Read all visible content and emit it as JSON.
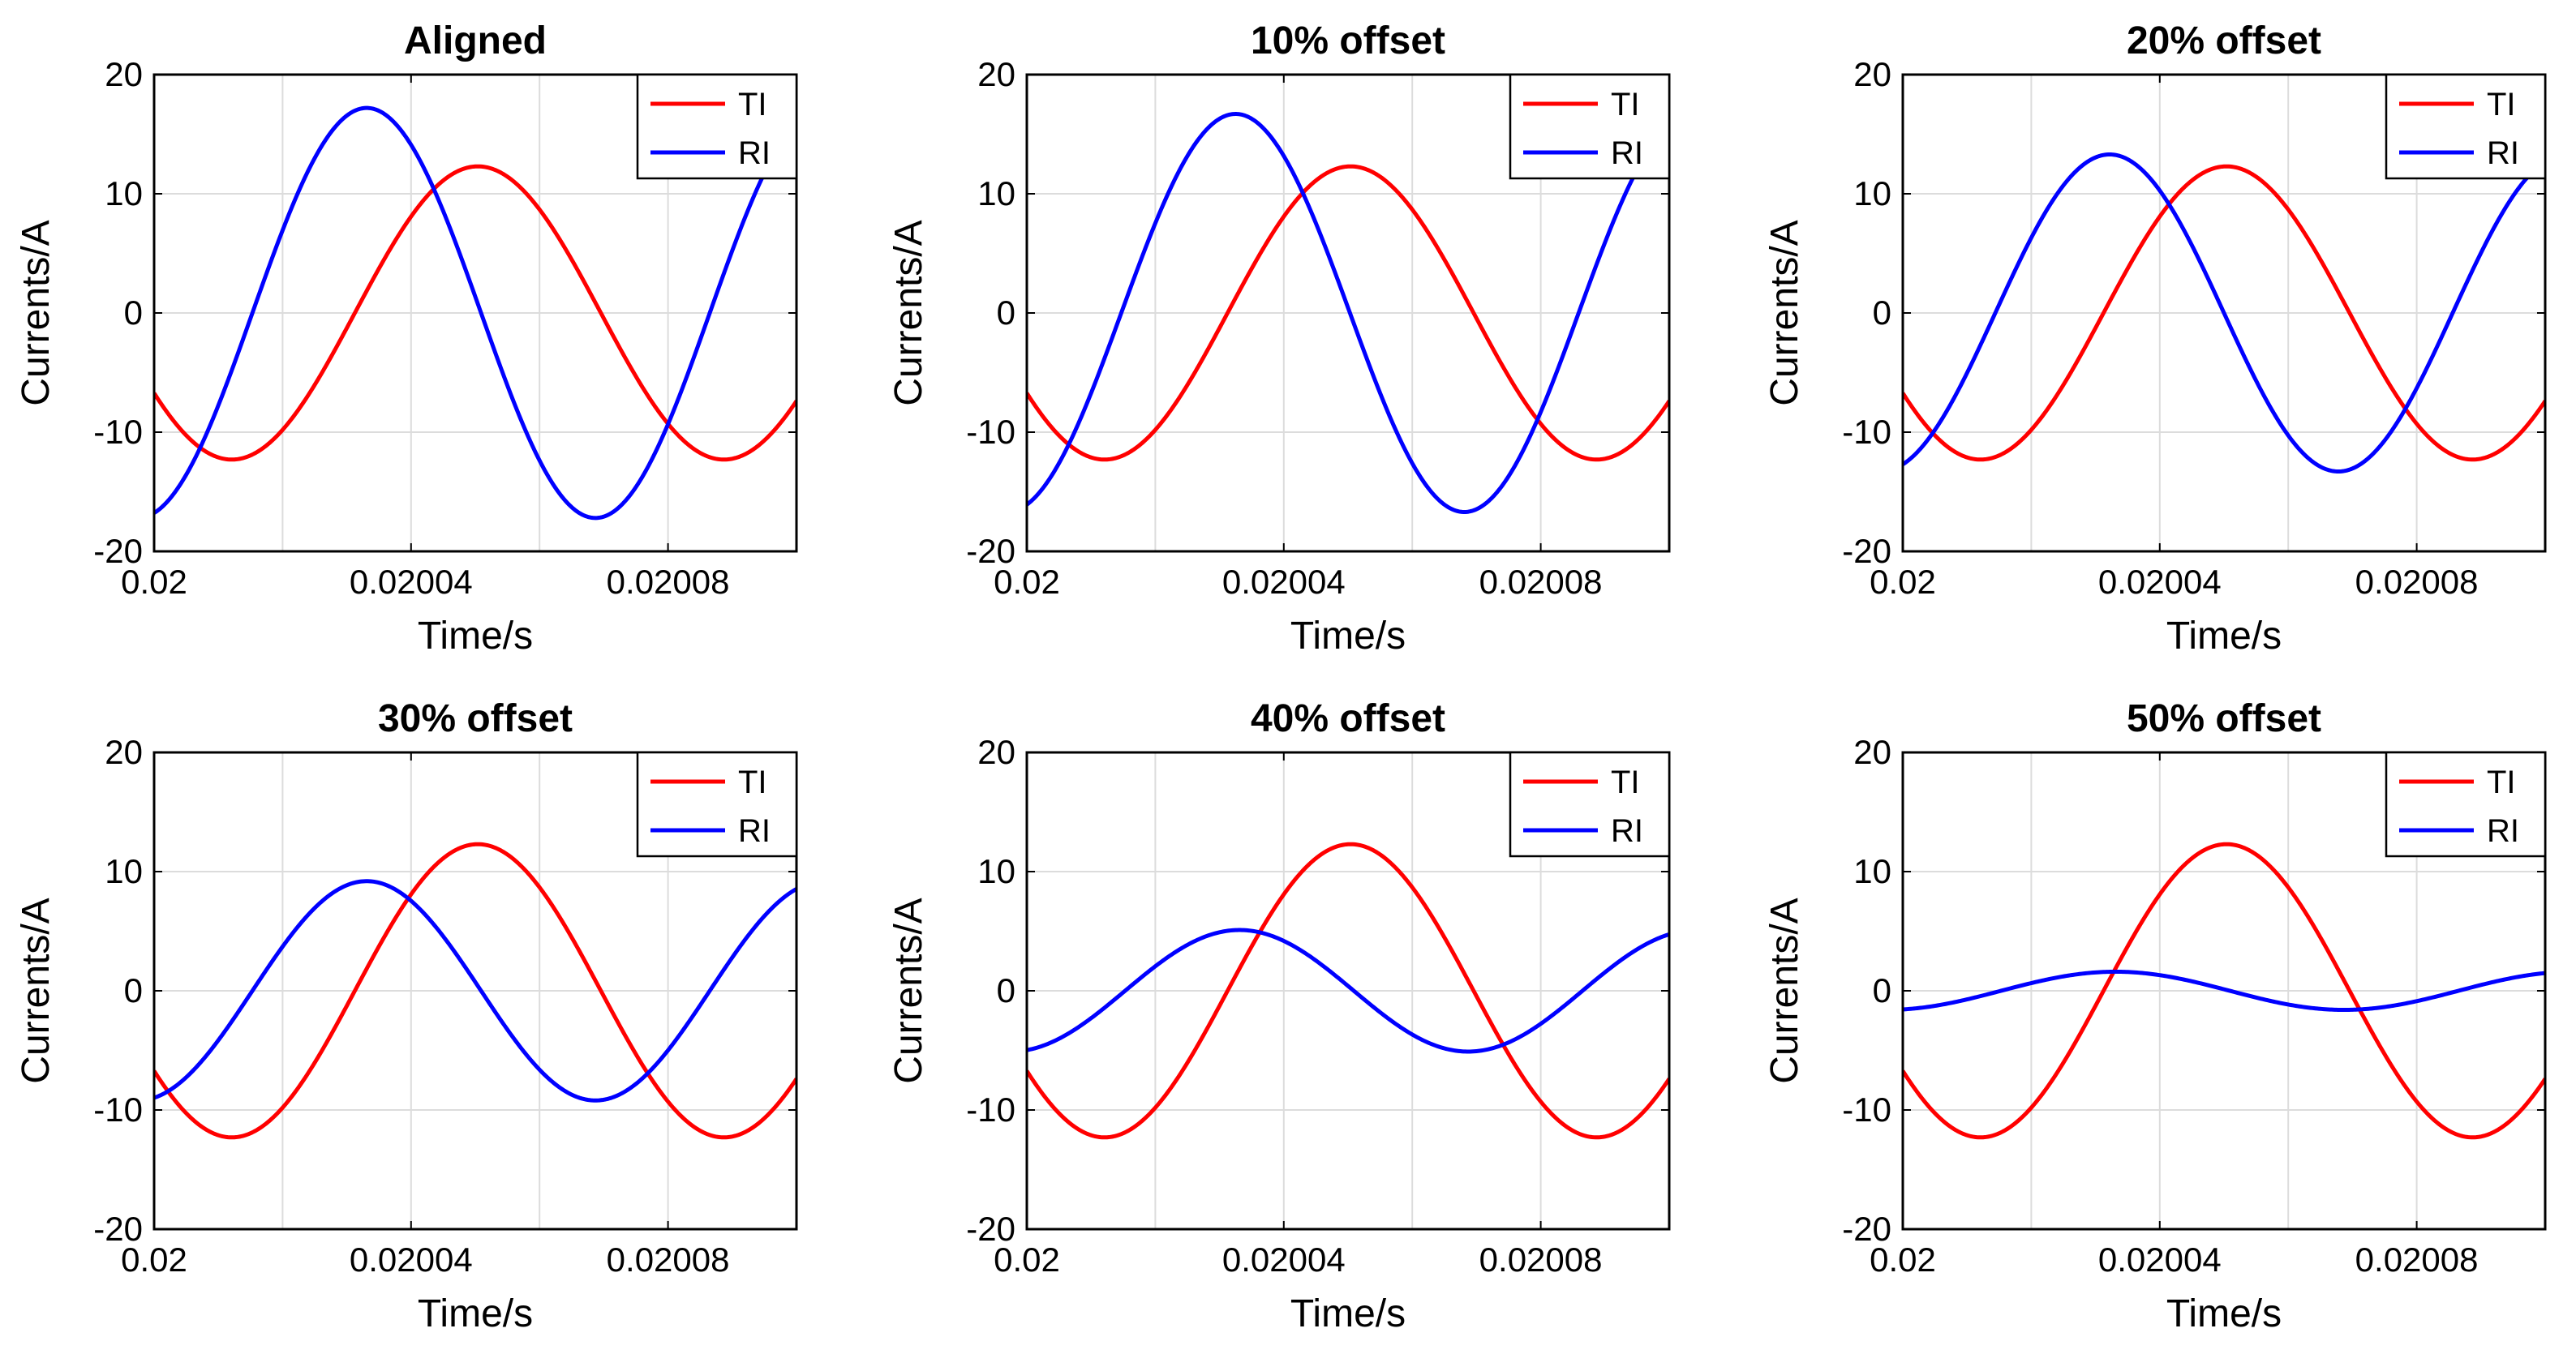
{
  "figure": {
    "layout": "2 rows x 3 columns of line charts",
    "colors": {
      "TI": "#ff0000",
      "RI": "#0000ff",
      "grid": "#dcdcdc",
      "axes": "#000000"
    }
  },
  "chart_data": [
    {
      "type": "line",
      "title": "Aligned",
      "xlabel": "Time/s",
      "ylabel": "Currents/A",
      "xlim": [
        0.02,
        0.0201
      ],
      "ylim": [
        -20,
        20
      ],
      "xticks": [
        0.02,
        0.02004,
        0.02008
      ],
      "xtick_labels": [
        "0.02",
        "0.02004",
        "0.02008"
      ],
      "yticks": [
        -20,
        -10,
        0,
        10,
        20
      ],
      "ytick_labels": [
        "-20",
        "-10",
        "0",
        "10",
        "20"
      ],
      "legend_location": "top-right",
      "grid": true,
      "series": [
        {
          "name": "TI",
          "color": "#ff0000",
          "amplitude": 12.3,
          "peak_time": 0.0200504,
          "period": 7.66e-05
        },
        {
          "name": "RI",
          "color": "#0000ff",
          "amplitude": 17.2,
          "peak_time": 0.0200331,
          "period": 7.12e-05
        }
      ]
    },
    {
      "type": "line",
      "title": "10% offset",
      "xlabel": "Time/s",
      "ylabel": "Currents/A",
      "xlim": [
        0.02,
        0.0201
      ],
      "ylim": [
        -20,
        20
      ],
      "xticks": [
        0.02,
        0.02004,
        0.02008
      ],
      "xtick_labels": [
        "0.02",
        "0.02004",
        "0.02008"
      ],
      "yticks": [
        -20,
        -10,
        0,
        10,
        20
      ],
      "ytick_labels": [
        "-20",
        "-10",
        "0",
        "10",
        "20"
      ],
      "legend_location": "top-right",
      "grid": true,
      "series": [
        {
          "name": "TI",
          "color": "#ff0000",
          "amplitude": 12.3,
          "peak_time": 0.0200504,
          "period": 7.66e-05
        },
        {
          "name": "RI",
          "color": "#0000ff",
          "amplitude": 16.7,
          "peak_time": 0.0200325,
          "period": 7.12e-05
        }
      ]
    },
    {
      "type": "line",
      "title": "20% offset",
      "xlabel": "Time/s",
      "ylabel": "Currents/A",
      "xlim": [
        0.02,
        0.0201
      ],
      "ylim": [
        -20,
        20
      ],
      "xticks": [
        0.02,
        0.02004,
        0.02008
      ],
      "xtick_labels": [
        "0.02",
        "0.02004",
        "0.02008"
      ],
      "yticks": [
        -20,
        -10,
        0,
        10,
        20
      ],
      "ytick_labels": [
        "-20",
        "-10",
        "0",
        "10",
        "20"
      ],
      "legend_location": "top-right",
      "grid": true,
      "series": [
        {
          "name": "TI",
          "color": "#ff0000",
          "amplitude": 12.3,
          "peak_time": 0.0200504,
          "period": 7.66e-05
        },
        {
          "name": "RI",
          "color": "#0000ff",
          "amplitude": 13.3,
          "peak_time": 0.0200322,
          "period": 7.12e-05
        }
      ]
    },
    {
      "type": "line",
      "title": "30% offset",
      "xlabel": "Time/s",
      "ylabel": "Currents/A",
      "xlim": [
        0.02,
        0.0201
      ],
      "ylim": [
        -20,
        20
      ],
      "xticks": [
        0.02,
        0.02004,
        0.02008
      ],
      "xtick_labels": [
        "0.02",
        "0.02004",
        "0.02008"
      ],
      "yticks": [
        -20,
        -10,
        0,
        10,
        20
      ],
      "ytick_labels": [
        "-20",
        "-10",
        "0",
        "10",
        "20"
      ],
      "legend_location": "top-right",
      "grid": true,
      "series": [
        {
          "name": "TI",
          "color": "#ff0000",
          "amplitude": 12.3,
          "peak_time": 0.0200504,
          "period": 7.66e-05
        },
        {
          "name": "RI",
          "color": "#0000ff",
          "amplitude": 9.2,
          "peak_time": 0.0200331,
          "period": 7.12e-05
        }
      ]
    },
    {
      "type": "line",
      "title": "40% offset",
      "xlabel": "Time/s",
      "ylabel": "Currents/A",
      "xlim": [
        0.02,
        0.0201
      ],
      "ylim": [
        -20,
        20
      ],
      "xticks": [
        0.02,
        0.02004,
        0.02008
      ],
      "xtick_labels": [
        "0.02",
        "0.02004",
        "0.02008"
      ],
      "yticks": [
        -20,
        -10,
        0,
        10,
        20
      ],
      "ytick_labels": [
        "-20",
        "-10",
        "0",
        "10",
        "20"
      ],
      "legend_location": "top-right",
      "grid": true,
      "series": [
        {
          "name": "TI",
          "color": "#ff0000",
          "amplitude": 12.3,
          "peak_time": 0.0200504,
          "period": 7.66e-05
        },
        {
          "name": "RI",
          "color": "#0000ff",
          "amplitude": 5.1,
          "peak_time": 0.0200331,
          "period": 7.12e-05
        }
      ]
    },
    {
      "type": "line",
      "title": "50% offset",
      "xlabel": "Time/s",
      "ylabel": "Currents/A",
      "xlim": [
        0.02,
        0.0201
      ],
      "ylim": [
        -20,
        20
      ],
      "xticks": [
        0.02,
        0.02004,
        0.02008
      ],
      "xtick_labels": [
        "0.02",
        "0.02004",
        "0.02008"
      ],
      "yticks": [
        -20,
        -10,
        0,
        10,
        20
      ],
      "ytick_labels": [
        "-20",
        "-10",
        "0",
        "10",
        "20"
      ],
      "legend_location": "top-right",
      "grid": true,
      "series": [
        {
          "name": "TI",
          "color": "#ff0000",
          "amplitude": 12.3,
          "peak_time": 0.0200504,
          "period": 7.66e-05
        },
        {
          "name": "RI",
          "color": "#0000ff",
          "amplitude": 1.6,
          "peak_time": 0.0200331,
          "period": 7.12e-05
        }
      ]
    }
  ]
}
